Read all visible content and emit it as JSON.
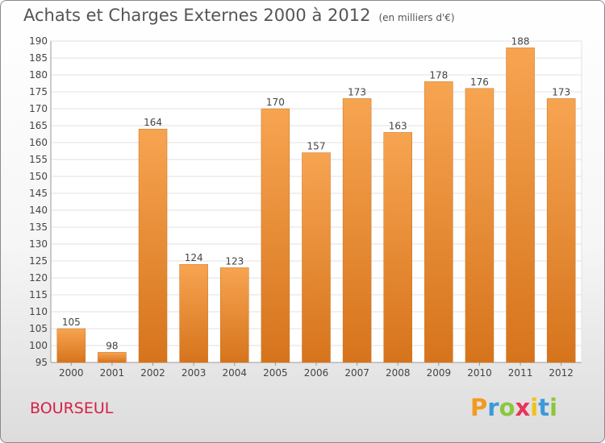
{
  "header": {
    "title": "Achats et Charges Externes 2000 à 2012",
    "unit": "(en milliers d'€)"
  },
  "commune": "BOURSEUL",
  "logo": {
    "letters": [
      "P",
      "r",
      "o",
      "x",
      "i",
      "t",
      "i"
    ],
    "colors": [
      "#f29a1f",
      "#3a9ad9",
      "#8cc63f",
      "#e8345a",
      "#f2c21b",
      "#3a9ad9",
      "#8cc63f"
    ]
  },
  "chart_data": {
    "type": "bar",
    "title": "Achats et Charges Externes 2000 à 2012",
    "subtitle": "(en milliers d'€)",
    "categories": [
      "2000",
      "2001",
      "2002",
      "2003",
      "2004",
      "2005",
      "2006",
      "2007",
      "2008",
      "2009",
      "2010",
      "2011",
      "2012"
    ],
    "values": [
      105,
      98,
      164,
      124,
      123,
      170,
      157,
      173,
      163,
      178,
      176,
      188,
      173
    ],
    "ylim": [
      95,
      190
    ],
    "yticks": [
      95,
      100,
      105,
      110,
      115,
      120,
      125,
      130,
      135,
      140,
      145,
      150,
      155,
      160,
      165,
      170,
      175,
      180,
      185,
      190
    ],
    "grid": true,
    "bar_color": "#f39c44"
  }
}
